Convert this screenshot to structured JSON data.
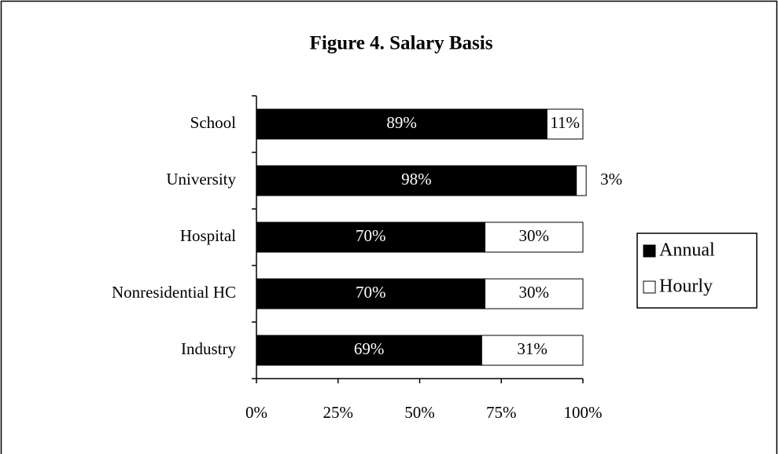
{
  "chart_data": {
    "type": "stacked_barh",
    "title": "Figure 4.  Salary Basis",
    "categories": [
      "School",
      "University",
      "Hospital",
      "Nonresidential HC",
      "Industry"
    ],
    "series": [
      {
        "name": "Annual",
        "color": "#000000",
        "values": [
          89,
          98,
          70,
          70,
          69
        ],
        "value_labels": [
          "89%",
          "98%",
          "70%",
          "70%",
          "69%"
        ]
      },
      {
        "name": "Hourly",
        "color": "#ffffff",
        "values": [
          11,
          3,
          30,
          30,
          31
        ],
        "value_labels": [
          "11%",
          "3%",
          "30%",
          "30%",
          "31%"
        ]
      }
    ],
    "xlim": [
      0,
      100
    ],
    "xticks": [
      {
        "value": 0,
        "label": "0%"
      },
      {
        "value": 25,
        "label": "25%"
      },
      {
        "value": 50,
        "label": "50%"
      },
      {
        "value": 75,
        "label": "75%"
      },
      {
        "value": 100,
        "label": "100%"
      }
    ],
    "legend": "right"
  }
}
